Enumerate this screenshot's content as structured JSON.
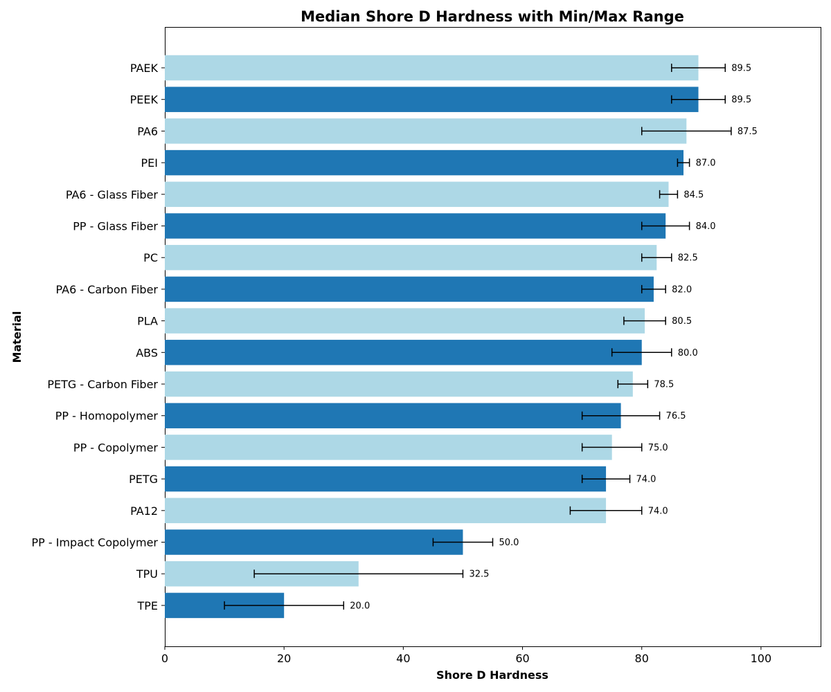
{
  "chart_data": {
    "type": "bar",
    "orientation": "horizontal",
    "title": "Median Shore D Hardness with Min/Max Range",
    "xlabel": "Shore D Hardness",
    "ylabel": "Material",
    "xlim": [
      0,
      110
    ],
    "xticks": [
      0,
      20,
      40,
      60,
      80,
      100
    ],
    "grid": false,
    "colors": [
      "#add8e6",
      "#1f77b4"
    ],
    "errorbar_color": "#000000",
    "categories": [
      "PAEK",
      "PEEK",
      "PA6",
      "PEI",
      "PA6 - Glass Fiber",
      "PP - Glass Fiber",
      "PC",
      "PA6 - Carbon Fiber",
      "PLA",
      "ABS",
      "PETG - Carbon Fiber",
      "PP - Homopolymer",
      "PP - Copolymer",
      "PETG",
      "PA12",
      "PP - Impact Copolymer",
      "TPU",
      "TPE"
    ],
    "values": [
      89.5,
      89.5,
      87.5,
      87.0,
      84.5,
      84.0,
      82.5,
      82.0,
      80.5,
      80.0,
      78.5,
      76.5,
      75.0,
      74.0,
      74.0,
      50.0,
      32.5,
      20.0
    ],
    "value_labels": [
      "89.5",
      "89.5",
      "87.5",
      "87.0",
      "84.5",
      "84.0",
      "82.5",
      "82.0",
      "80.5",
      "80.0",
      "78.5",
      "76.5",
      "75.0",
      "74.0",
      "74.0",
      "50.0",
      "32.5",
      "20.0"
    ],
    "min": [
      85,
      85,
      80,
      86,
      83,
      80,
      80,
      80,
      77,
      75,
      76,
      70,
      70,
      70,
      68,
      45,
      15,
      10
    ],
    "max": [
      94,
      94,
      95,
      88,
      86,
      88,
      85,
      84,
      84,
      85,
      81,
      83,
      80,
      78,
      80,
      55,
      50,
      30
    ]
  }
}
